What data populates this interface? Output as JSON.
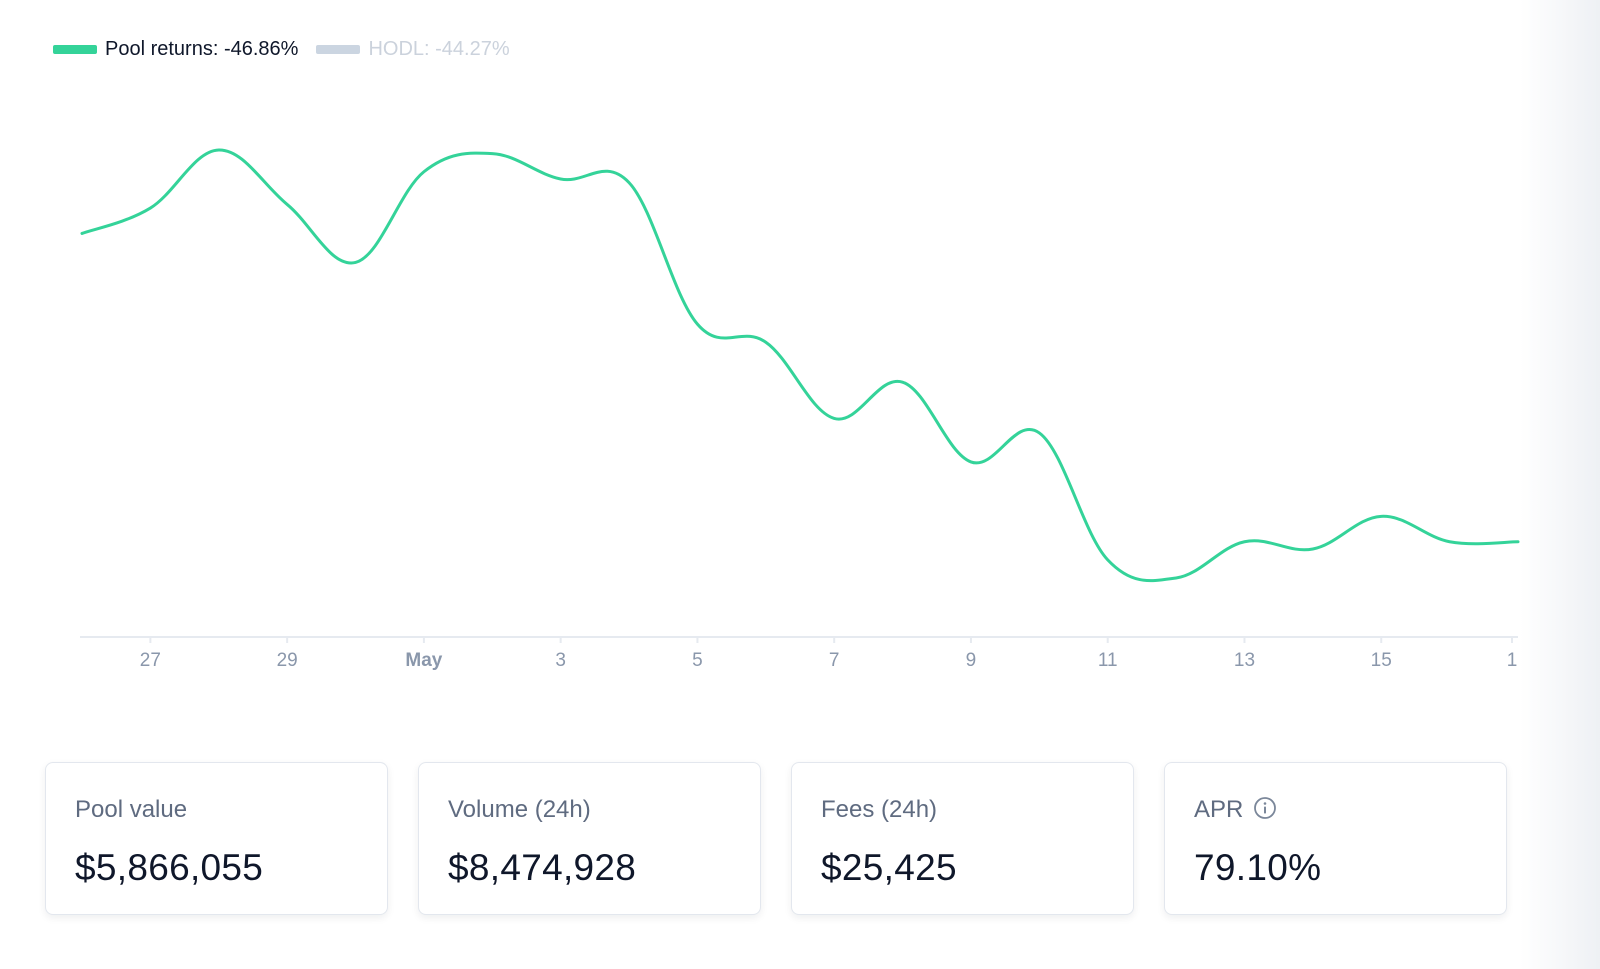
{
  "legend": {
    "pool": {
      "label": "Pool returns: -46.86%",
      "color": "#34d399",
      "active": true
    },
    "hodl": {
      "label": "HODL: -44.27%",
      "color": "#cbd5e1",
      "active": false
    }
  },
  "chart_data": {
    "type": "line",
    "title": "",
    "xlabel": "",
    "ylabel": "",
    "x_ticks": [
      "27",
      "29",
      "May",
      "3",
      "5",
      "7",
      "9",
      "11",
      "13",
      "15",
      "1"
    ],
    "x_tick_emphasis": [
      "May"
    ],
    "grid": false,
    "legend_position": "top-left",
    "series": [
      {
        "name": "Pool returns",
        "color": "#34d399",
        "x": [
          "Apr 26",
          "Apr 27",
          "Apr 28",
          "Apr 29",
          "Apr 30",
          "May 1",
          "May 2",
          "May 3",
          "May 4",
          "May 5",
          "May 6",
          "May 7",
          "May 8",
          "May 9",
          "May 10",
          "May 11",
          "May 12",
          "May 13",
          "May 14",
          "May 15",
          "May 16",
          "May 17"
        ],
        "values": [
          0.73,
          0.8,
          0.96,
          0.81,
          0.65,
          0.9,
          0.95,
          0.88,
          0.87,
          0.48,
          0.43,
          0.22,
          0.32,
          0.1,
          0.18,
          -0.17,
          -0.22,
          -0.12,
          -0.14,
          -0.05,
          -0.12,
          -0.12
        ]
      }
    ]
  },
  "cards": [
    {
      "label": "Pool value",
      "value": "$5,866,055",
      "info": false
    },
    {
      "label": "Volume (24h)",
      "value": "$8,474,928",
      "info": false
    },
    {
      "label": "Fees (24h)",
      "value": "$25,425",
      "info": false
    },
    {
      "label": "APR",
      "value": "79.10%",
      "info": true,
      "info_icon": "info-icon"
    }
  ]
}
